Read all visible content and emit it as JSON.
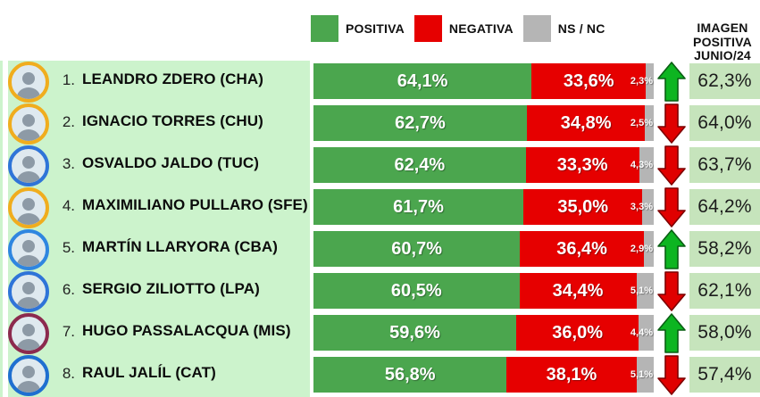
{
  "legend": {
    "items": [
      {
        "label": "POSITIVA",
        "color": "#4ba64e"
      },
      {
        "label": "NEGATIVA",
        "color": "#e60000"
      },
      {
        "label": "NS / NC",
        "color": "#b5b5b5"
      }
    ]
  },
  "right_header": {
    "line1": "IMAGEN",
    "line2": "POSITIVA",
    "line3": "JUNIO/24"
  },
  "colors": {
    "positiva": "#4ba64e",
    "negativa": "#e60000",
    "nsnc": "#b5b5b5",
    "row_panel": "#ccf3cc",
    "value_box": "#c6e4bc",
    "arrow_up": "#0db521",
    "arrow_up_stroke": "#0a5f14",
    "arrow_down": "#e00000",
    "arrow_down_stroke": "#7e0000"
  },
  "rows": [
    {
      "rank": "1.",
      "name": "LEANDRO ZDERO (CHA)",
      "positiva": 64.1,
      "negativa": 33.6,
      "nsnc": 2.3,
      "positiva_label": "64,1%",
      "negativa_label": "33,6%",
      "nsnc_label": "2,3%",
      "trend": "up",
      "imagen_junio": "62,3%",
      "ring_color": "#f0ad1e"
    },
    {
      "rank": "2.",
      "name": "IGNACIO TORRES (CHU)",
      "positiva": 62.7,
      "negativa": 34.8,
      "nsnc": 2.5,
      "positiva_label": "62,7%",
      "negativa_label": "34,8%",
      "nsnc_label": "2,5%",
      "trend": "down",
      "imagen_junio": "64,0%",
      "ring_color": "#f0ad1e"
    },
    {
      "rank": "3.",
      "name": "OSVALDO JALDO (TUC)",
      "positiva": 62.4,
      "negativa": 33.3,
      "nsnc": 4.3,
      "positiva_label": "62,4%",
      "negativa_label": "33,3%",
      "nsnc_label": "4,3%",
      "trend": "down",
      "imagen_junio": "63,7%",
      "ring_color": "#2f74d8"
    },
    {
      "rank": "4.",
      "name": "MAXIMILIANO PULLARO (SFE)",
      "positiva": 61.7,
      "negativa": 35.0,
      "nsnc": 3.3,
      "positiva_label": "61,7%",
      "negativa_label": "35,0%",
      "nsnc_label": "3,3%",
      "trend": "down",
      "imagen_junio": "64,2%",
      "ring_color": "#f0ad1e"
    },
    {
      "rank": "5.",
      "name": "MARTÍN LLARYORA (CBA)",
      "positiva": 60.7,
      "negativa": 36.4,
      "nsnc": 2.9,
      "positiva_label": "60,7%",
      "negativa_label": "36,4%",
      "nsnc_label": "2,9%",
      "trend": "up",
      "imagen_junio": "58,2%",
      "ring_color": "#2f86e0"
    },
    {
      "rank": "6.",
      "name": "SERGIO ZILIOTTO (LPA)",
      "positiva": 60.5,
      "negativa": 34.4,
      "nsnc": 5.1,
      "positiva_label": "60,5%",
      "negativa_label": "34,4%",
      "nsnc_label": "5,1%",
      "trend": "down",
      "imagen_junio": "62,1%",
      "ring_color": "#2f74d8"
    },
    {
      "rank": "7.",
      "name": "HUGO PASSALACQUA (MIS)",
      "positiva": 59.6,
      "negativa": 36.0,
      "nsnc": 4.4,
      "positiva_label": "59,6%",
      "negativa_label": "36,0%",
      "nsnc_label": "4,4%",
      "trend": "up",
      "imagen_junio": "58,0%",
      "ring_color": "#8c2a4e"
    },
    {
      "rank": "8.",
      "name": "RAUL JALÍL (CAT)",
      "positiva": 56.8,
      "negativa": 38.1,
      "nsnc": 5.1,
      "positiva_label": "56,8%",
      "negativa_label": "38,1%",
      "nsnc_label": "5,1%",
      "trend": "down",
      "imagen_junio": "57,4%",
      "ring_color": "#1f6fd0"
    }
  ],
  "chart_data": {
    "type": "bar",
    "stacked": true,
    "orientation": "horizontal",
    "title": "",
    "categories": [
      "LEANDRO ZDERO (CHA)",
      "IGNACIO TORRES (CHU)",
      "OSVALDO JALDO (TUC)",
      "MAXIMILIANO PULLARO (SFE)",
      "MARTÍN LLARYORA (CBA)",
      "SERGIO ZILIOTTO (LPA)",
      "HUGO PASSALACQUA (MIS)",
      "RAUL JALÍL (CAT)"
    ],
    "series": [
      {
        "name": "POSITIVA",
        "color": "#4ba64e",
        "values": [
          64.1,
          62.7,
          62.4,
          61.7,
          60.7,
          60.5,
          59.6,
          56.8
        ]
      },
      {
        "name": "NEGATIVA",
        "color": "#e60000",
        "values": [
          33.6,
          34.8,
          33.3,
          35.0,
          36.4,
          34.4,
          36.0,
          38.1
        ]
      },
      {
        "name": "NS / NC",
        "color": "#b5b5b5",
        "values": [
          2.3,
          2.5,
          4.3,
          3.3,
          2.9,
          5.1,
          4.4,
          5.1
        ]
      }
    ],
    "comparison_column": {
      "title": "IMAGEN POSITIVA JUNIO/24",
      "values": [
        62.3,
        64.0,
        63.7,
        64.2,
        58.2,
        62.1,
        58.0,
        57.4
      ]
    },
    "trend_vs_previous": [
      "up",
      "down",
      "down",
      "down",
      "up",
      "down",
      "up",
      "down"
    ],
    "xlim": [
      0,
      100
    ],
    "value_format": "percent-comma",
    "legend_position": "top",
    "grid": false
  }
}
